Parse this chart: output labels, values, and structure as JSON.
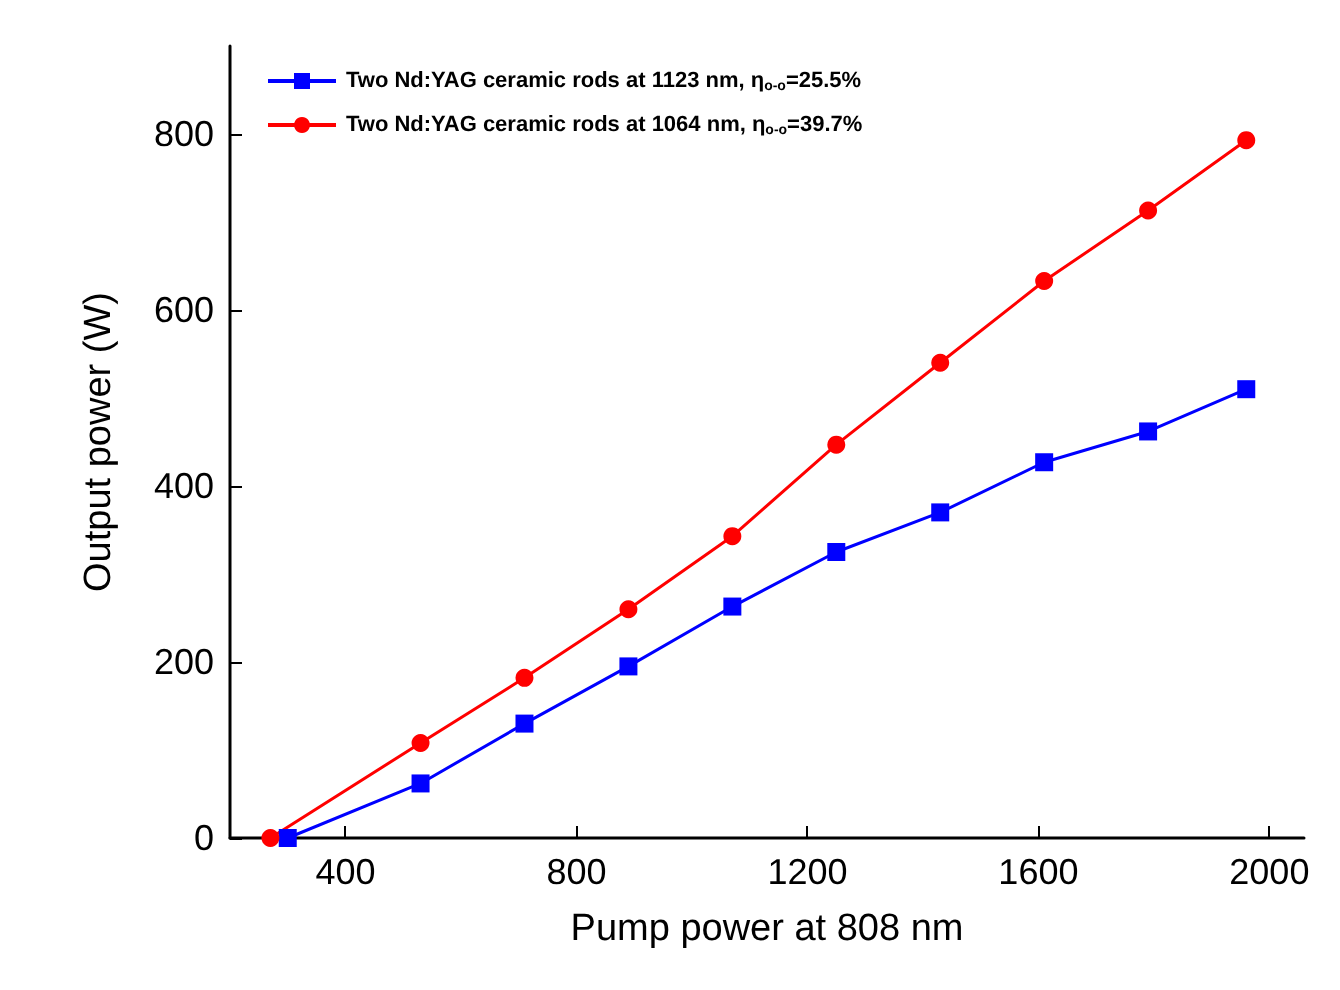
{
  "chart_data": {
    "type": "line",
    "xlabel": "Pump power at 808 nm",
    "ylabel": "Output power (W)",
    "xlim": [
      200,
      2060
    ],
    "xticks": [
      400,
      800,
      1200,
      1600,
      2000
    ],
    "ylim": [
      0,
      900
    ],
    "yticks": [
      0,
      200,
      400,
      600,
      800
    ],
    "grid": false,
    "legend": "top left",
    "line_style": "solid",
    "series": [
      {
        "name": "Two Nd:YAG ceramic rods at 1123 nm, η$_{o-o}$=25.5%",
        "color": "#0000ff",
        "marker": "square",
        "x": [
          300,
          530,
          710,
          890,
          1070,
          1250,
          1430,
          1610,
          1790,
          1960
        ],
        "values": [
          0,
          62,
          130,
          195,
          263,
          325,
          370,
          427,
          462,
          510
        ]
      },
      {
        "name": "Two Nd:YAG ceramic rods at 1064 nm, η$_{o-o}$=39.7%",
        "color": "#ff0000",
        "marker": "circle",
        "x": [
          270,
          530,
          710,
          890,
          1070,
          1250,
          1430,
          1610,
          1790,
          1960
        ],
        "values": [
          0,
          108,
          182,
          260,
          343,
          447,
          540,
          633,
          713,
          793
        ]
      }
    ]
  }
}
